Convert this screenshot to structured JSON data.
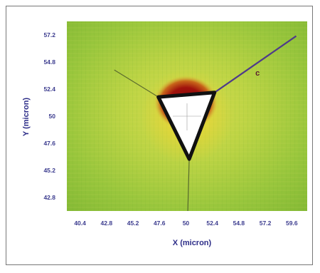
{
  "chart_data": {
    "type": "heatmap",
    "title": "",
    "xlabel": "X (micron)",
    "ylabel": "Y (micron)",
    "xlim": [
      39.2,
      61.0
    ],
    "ylim": [
      41.6,
      58.4
    ],
    "x_ticks": [
      "40.4",
      "42.8",
      "45.2",
      "47.6",
      "50",
      "52.4",
      "54.8",
      "57.2",
      "59.6"
    ],
    "y_ticks": [
      "57.2",
      "54.8",
      "52.4",
      "50",
      "47.6",
      "45.2",
      "42.8"
    ],
    "x_tick_values": [
      40.4,
      42.8,
      45.2,
      47.6,
      50.0,
      52.4,
      54.8,
      57.2,
      59.6
    ],
    "y_tick_values": [
      57.2,
      54.8,
      52.4,
      50.0,
      47.6,
      45.2,
      42.8
    ],
    "indent": {
      "shape": "triangle",
      "vertices": [
        [
          47.5,
          51.7
        ],
        [
          50.3,
          46.2
        ],
        [
          52.6,
          52.1
        ]
      ],
      "center": [
        50.1,
        50.0
      ]
    },
    "high_intensity_region": {
      "center": [
        50.0,
        51.2
      ],
      "color": "#a0120c"
    },
    "crack_line": {
      "label": "c",
      "start": [
        52.6,
        52.1
      ],
      "end": [
        60.0,
        57.1
      ],
      "label_position": [
        56.3,
        53.6
      ]
    },
    "colors": {
      "background_map": "#9ac83a",
      "background_map_light": "#c9d84e",
      "hot": "#a0120c",
      "indent_fill": "#ffffff",
      "indent_edge": "#111111",
      "crack": "#4e3a8a",
      "tick_text": "#3b3b8e"
    }
  }
}
